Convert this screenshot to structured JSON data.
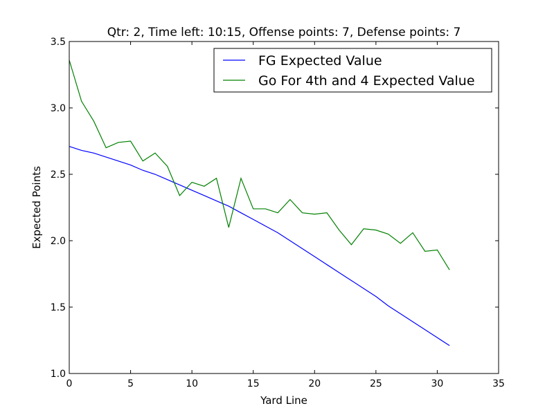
{
  "chart_data": {
    "type": "line",
    "title": "Qtr: 2, Time left: 10:15, Offense points: 7, Defense points: 7",
    "xlabel": "Yard Line",
    "ylabel": "Expected Points",
    "xlim": [
      0,
      35
    ],
    "ylim": [
      1.0,
      3.5
    ],
    "xticks": [
      "0",
      "5",
      "10",
      "15",
      "20",
      "25",
      "30",
      "35"
    ],
    "yticks": [
      "1.0",
      "1.5",
      "2.0",
      "2.5",
      "3.0",
      "3.5"
    ],
    "grid": false,
    "legend_position": "top-right",
    "x": [
      0,
      1,
      2,
      3,
      4,
      5,
      6,
      7,
      8,
      9,
      10,
      11,
      12,
      13,
      14,
      15,
      16,
      17,
      18,
      19,
      20,
      21,
      22,
      23,
      24,
      25,
      26,
      27,
      28,
      29,
      30,
      31
    ],
    "series": [
      {
        "name": "FG Expected Value",
        "color": "#0000ff",
        "values": [
          2.71,
          2.68,
          2.66,
          2.63,
          2.6,
          2.57,
          2.53,
          2.5,
          2.46,
          2.42,
          2.38,
          2.34,
          2.3,
          2.26,
          2.21,
          2.16,
          2.11,
          2.06,
          2.0,
          1.94,
          1.88,
          1.82,
          1.76,
          1.7,
          1.64,
          1.58,
          1.51,
          1.45,
          1.39,
          1.33,
          1.27,
          1.21
        ]
      },
      {
        "name": "Go For 4th and 4 Expected Value",
        "color": "#008000",
        "values": [
          3.36,
          3.05,
          2.9,
          2.7,
          2.74,
          2.75,
          2.6,
          2.66,
          2.56,
          2.34,
          2.44,
          2.41,
          2.47,
          2.1,
          2.47,
          2.24,
          2.24,
          2.21,
          2.31,
          2.21,
          2.2,
          2.21,
          2.08,
          1.97,
          2.09,
          2.08,
          2.05,
          1.98,
          2.06,
          1.92,
          1.93,
          1.78
        ]
      }
    ]
  }
}
